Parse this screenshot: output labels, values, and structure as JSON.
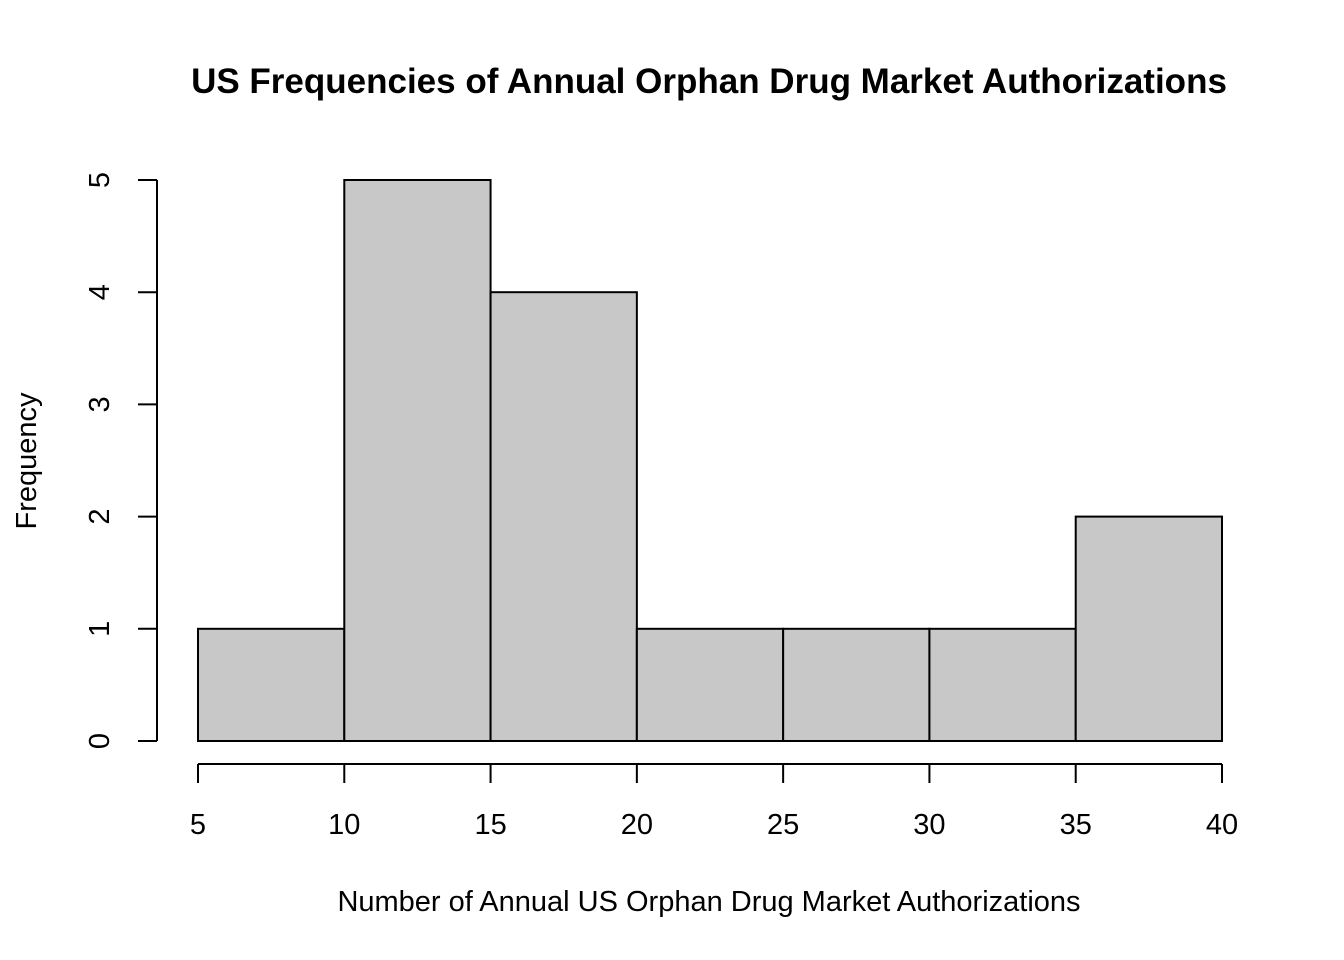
{
  "chart_data": {
    "type": "bar",
    "title": "US Frequencies of Annual Orphan Drug Market Authorizations",
    "xlabel": "Number of Annual US Orphan Drug Market Authorizations",
    "ylabel": "Frequency",
    "bins": [
      {
        "start": 5,
        "end": 10,
        "count": 1
      },
      {
        "start": 10,
        "end": 15,
        "count": 5
      },
      {
        "start": 15,
        "end": 20,
        "count": 4
      },
      {
        "start": 20,
        "end": 25,
        "count": 1
      },
      {
        "start": 25,
        "end": 30,
        "count": 1
      },
      {
        "start": 30,
        "end": 35,
        "count": 1
      },
      {
        "start": 35,
        "end": 40,
        "count": 2
      }
    ],
    "xticks": [
      "5",
      "10",
      "15",
      "20",
      "25",
      "30",
      "35",
      "40"
    ],
    "yticks": [
      "0",
      "1",
      "2",
      "3",
      "4",
      "5"
    ],
    "xlim": [
      5,
      40
    ],
    "ylim": [
      0,
      5
    ],
    "bar_color": "#c8c8c8",
    "grid": false
  }
}
